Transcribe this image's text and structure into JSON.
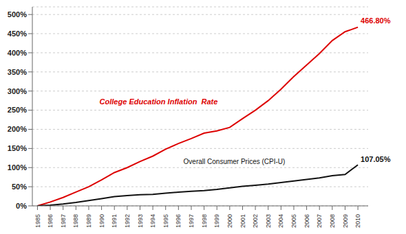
{
  "chart_data": {
    "type": "line",
    "x": [
      1985,
      1986,
      1987,
      1988,
      1989,
      1990,
      1991,
      1992,
      1993,
      1994,
      1995,
      1996,
      1997,
      1998,
      1999,
      2000,
      2001,
      2002,
      2003,
      2004,
      2005,
      2006,
      2007,
      2008,
      2009,
      2010
    ],
    "series": [
      {
        "color": "#dd0000",
        "values": [
          0,
          10,
          22,
          36,
          50,
          68,
          87,
          100,
          116,
          130,
          148,
          163,
          176,
          190,
          196,
          205,
          228,
          250,
          275,
          305,
          338,
          368,
          398,
          432,
          455,
          466.8
        ],
        "value_labels": [
          null,
          null,
          null,
          null,
          null,
          null,
          null,
          null,
          null,
          null,
          null,
          null,
          null,
          null,
          null,
          null,
          null,
          null,
          null,
          null,
          null,
          null,
          null,
          null,
          null,
          "466.80%"
        ]
      },
      {
        "color": "#111111",
        "values": [
          0,
          2,
          5,
          9,
          14,
          19,
          24,
          27,
          29,
          30,
          33,
          36,
          38,
          40,
          43,
          47,
          51,
          54,
          57,
          61,
          65,
          69,
          73,
          79,
          82,
          107.05
        ],
        "value_labels": [
          null,
          null,
          null,
          null,
          null,
          null,
          null,
          null,
          null,
          null,
          null,
          null,
          null,
          null,
          null,
          null,
          null,
          null,
          null,
          null,
          null,
          null,
          null,
          null,
          null,
          "107.05%"
        ]
      }
    ],
    "annotations": [
      {
        "text": "College Education Inflation  Rate",
        "color": "#dd0000"
      },
      {
        "text": "Overall Consumer Prices (CPI-U)",
        "color": "#111111"
      }
    ],
    "xlim": [
      1984.6,
      2010.8
    ],
    "xticks": [
      1985,
      1986,
      1987,
      1988,
      1989,
      1990,
      1991,
      1992,
      1993,
      1994,
      1995,
      1996,
      1997,
      1998,
      1999,
      2000,
      2001,
      2002,
      2003,
      2004,
      2005,
      2006,
      2007,
      2008,
      2009,
      2010
    ],
    "ylim": [
      0,
      520
    ],
    "yticks": [
      {
        "value": 0,
        "label": "0%"
      },
      {
        "value": 50,
        "label": "50%"
      },
      {
        "value": 100,
        "label": "100%"
      },
      {
        "value": 150,
        "label": "150%"
      },
      {
        "value": 200,
        "label": "200%"
      },
      {
        "value": 250,
        "label": "250%"
      },
      {
        "value": 300,
        "label": "300%"
      },
      {
        "value": 350,
        "label": "350%"
      },
      {
        "value": 400,
        "label": "400%"
      },
      {
        "value": 450,
        "label": "450%"
      },
      {
        "value": 500,
        "label": "500%"
      }
    ],
    "grid": true
  }
}
